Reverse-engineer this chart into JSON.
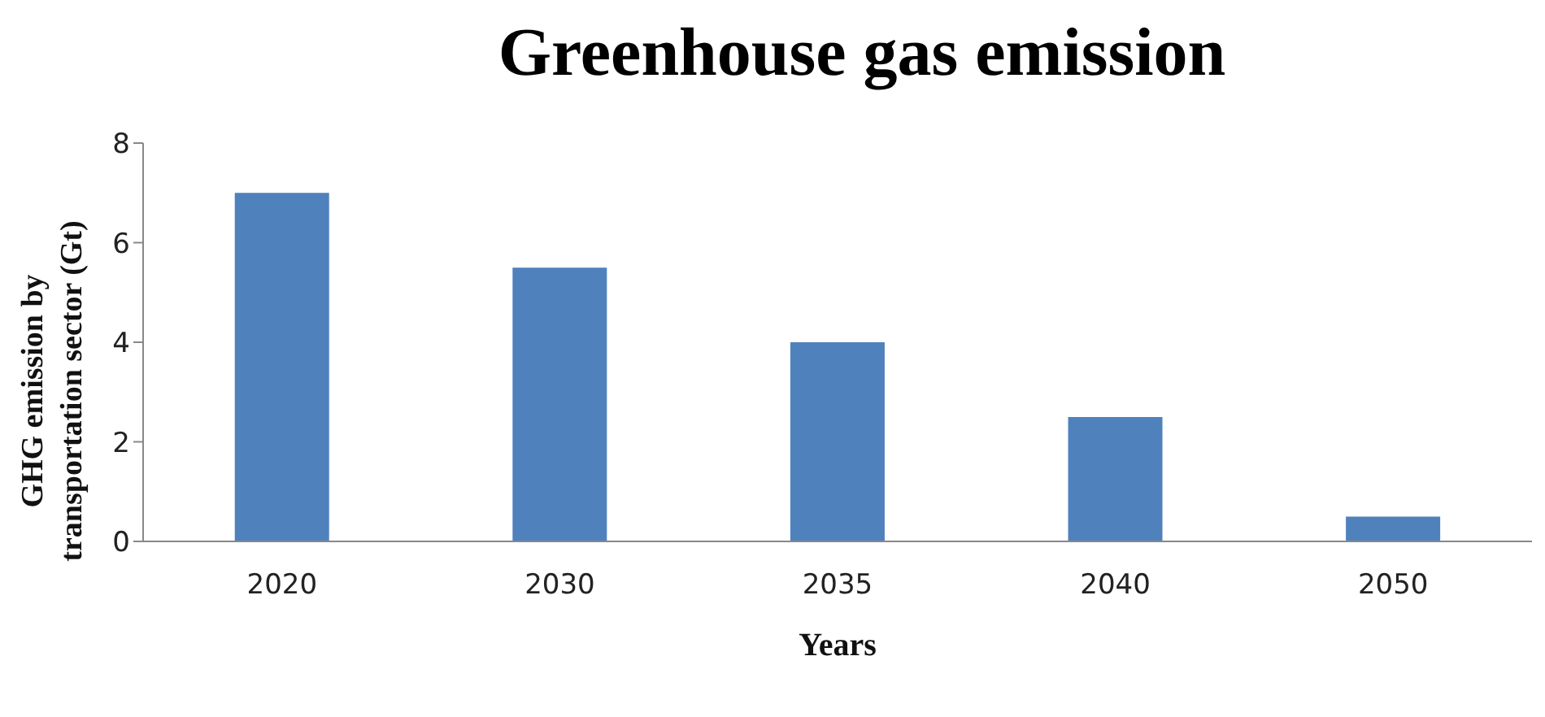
{
  "chart_data": {
    "type": "bar",
    "title": "Greenhouse gas emission",
    "xlabel": "Years",
    "ylabel": "GHG emission by transportation sector (Gt)",
    "categories": [
      "2020",
      "2030",
      "2035",
      "2040",
      "2050"
    ],
    "values": [
      7,
      5.5,
      4,
      2.5,
      0.5
    ],
    "color": "#4f81bd",
    "ylim": [
      0,
      8
    ],
    "yticks": [
      0,
      2,
      4,
      6,
      8
    ],
    "grid": false
  }
}
